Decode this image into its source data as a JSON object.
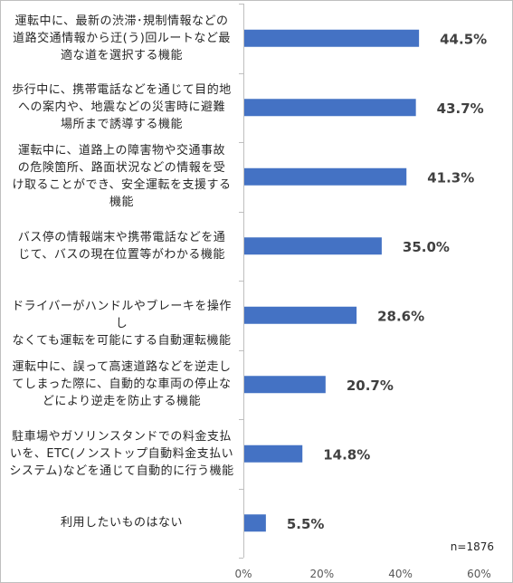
{
  "chart_data": {
    "type": "bar",
    "orientation": "horizontal",
    "categories": [
      "運転中に、最新の渋滞･規制情報などの道路交通情報から迂(う)回ルートなど最適な道を選択する機能",
      "歩行中に、携帯電話などを通じて目的地への案内や、地震などの災害時に避難場所まで誘導する機能",
      "運転中に、道路上の障害物や交通事故の危険箇所、路面状況などの情報を受け取ることができ、安全運転を支援する機能",
      "バス停の情報端末や携帯電話などを通じて、バスの現在位置等がわかる機能",
      "ドライバーがハンドルやブレーキを操作しなくても運転を可能にする自動運転機能",
      "運転中に、誤って高速道路などを逆走してしまった際に、自動的な車両の停止などにより逆走を防止する機能",
      "駐車場やガソリンスタンドでの料金支払いを、ETC(ノンストップ自動料金支払いシステム)などを通じて自動的に行う機能",
      "利用したいものはない"
    ],
    "label_lines": [
      [
        "運転中に、最新の渋滞･規制情報などの",
        "道路交通情報から迂(う)回ルートなど最",
        "適な道を選択する機能"
      ],
      [
        "歩行中に、携帯電話などを通じて目的地",
        "への案内や、地震などの災害時に避難",
        "場所まで誘導する機能"
      ],
      [
        "運転中に、道路上の障害物や交通事故",
        "の危険箇所、路面状況などの情報を受",
        "け取ることができ、安全運転を支援する",
        "機能"
      ],
      [
        "バス停の情報端末や携帯電話などを通",
        "じて、バスの現在位置等がわかる機能"
      ],
      [
        "ドライバーがハンドルやブレーキを操作し",
        "なくても運転を可能にする自動運転機能"
      ],
      [
        "運転中に、誤って高速道路などを逆走し",
        "てしまった際に、自動的な車両の停止な",
        "どにより逆走を防止する機能"
      ],
      [
        "駐車場やガソリンスタンドでの料金支払",
        "いを、ETC(ノンストップ自動料金支払い",
        "システム)などを通じて自動的に行う機能"
      ],
      [
        "利用したいものはない"
      ]
    ],
    "values": [
      44.5,
      43.7,
      41.3,
      35.0,
      28.6,
      20.7,
      14.8,
      5.5
    ],
    "data_labels": [
      "44.5%",
      "43.7%",
      "41.3%",
      "35.0%",
      "28.6%",
      "20.7%",
      "14.8%",
      "5.5%"
    ],
    "xlim": [
      0,
      60
    ],
    "xticks": [
      0,
      20,
      40,
      60
    ],
    "xtick_labels": [
      "0%",
      "20%",
      "40%",
      "60%"
    ],
    "grid": false,
    "bar_color": "#4472c4",
    "axis_color": "#bfbfbf",
    "sample_note": "n=1876"
  }
}
